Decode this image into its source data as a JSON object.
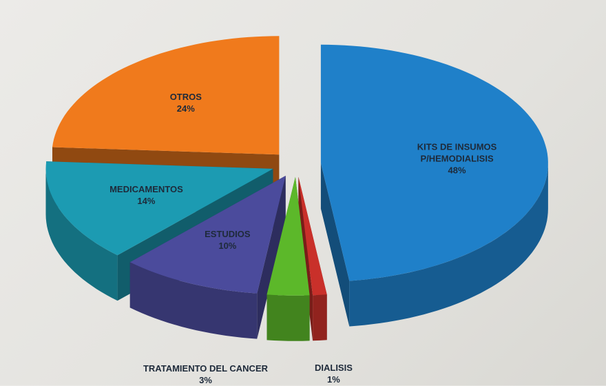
{
  "chart_data": {
    "type": "pie",
    "categories": [
      "KITS DE INSUMOS P/HEMODIALISIS",
      "DIALISIS",
      "TRATAMIENTO DEL CANCER",
      "ESTUDIOS",
      "MEDICAMENTOS",
      "OTROS"
    ],
    "values": [
      48,
      1,
      3,
      10,
      14,
      24
    ],
    "value_labels": [
      "48%",
      "1%",
      "3%",
      "10%",
      "14%",
      "24%"
    ],
    "colors": [
      "#1f80c9",
      "#c9302a",
      "#5cb82a",
      "#4b4b9c",
      "#1c9bb2",
      "#f07a1c"
    ]
  }
}
